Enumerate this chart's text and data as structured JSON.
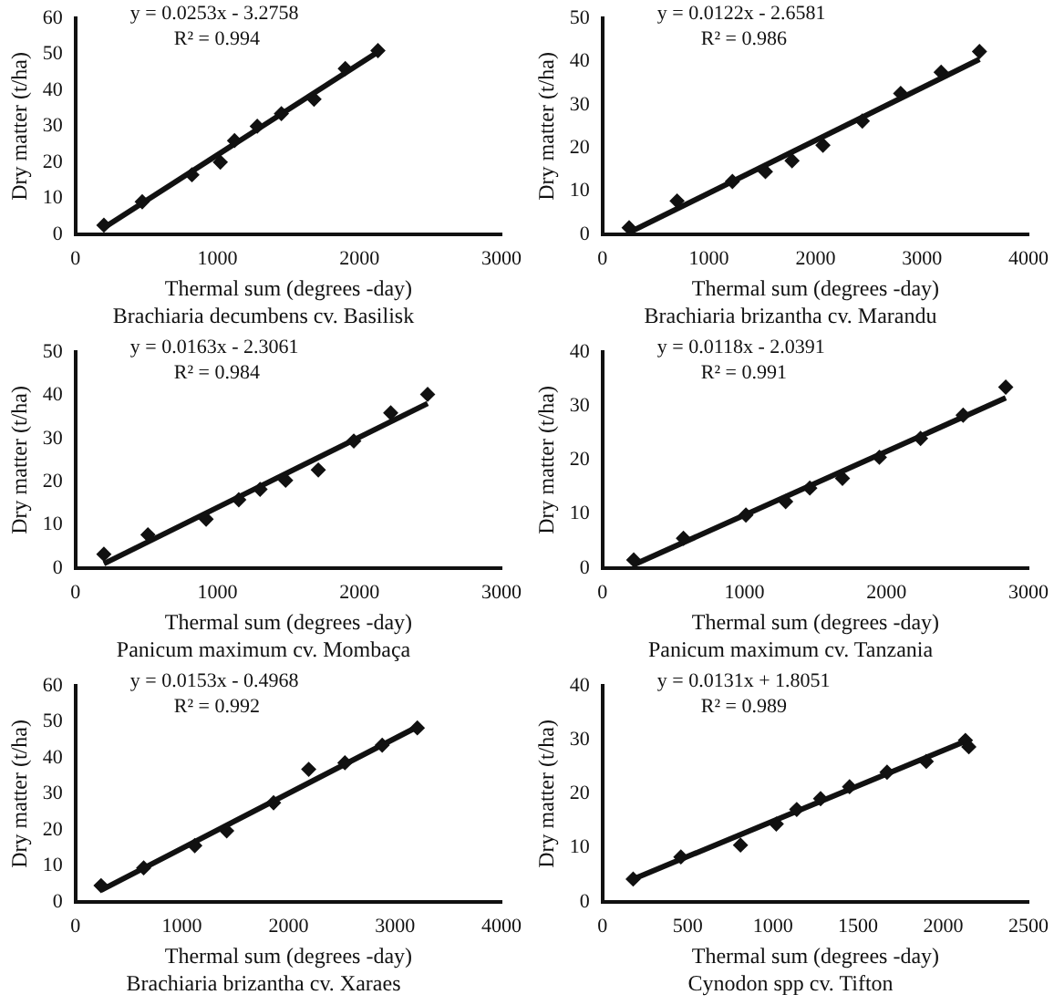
{
  "chart_data": [
    {
      "type": "scatter",
      "title": "Brachiaria decumbens cv. Basilisk",
      "xlabel": "Thermal sum (degrees -day)",
      "ylabel": "Dry matter (t/ha)",
      "xlim": [
        0,
        3000
      ],
      "xticks": [
        0,
        1000,
        2000,
        3000
      ],
      "ylim": [
        0,
        60
      ],
      "yticks": [
        0,
        10,
        20,
        30,
        40,
        50,
        60
      ],
      "annotations": [
        "y = 0.0253x - 3.2758",
        "R² = 0.994"
      ],
      "series": [
        {
          "type": "scatter",
          "marker": "diamond",
          "color": "#111111",
          "x": [
            200,
            470,
            820,
            1020,
            1120,
            1280,
            1450,
            1680,
            1900,
            2130
          ],
          "values": [
            2.5,
            9,
            16.5,
            20,
            26,
            30,
            33.5,
            37.5,
            46,
            51
          ]
        },
        {
          "type": "line",
          "color": "#111111",
          "x": [
            200,
            2130
          ],
          "values": [
            1.8,
            50.6
          ]
        }
      ]
    },
    {
      "type": "scatter",
      "title": "Brachiaria brizantha cv. Marandu",
      "xlabel": "Thermal sum (degrees -day)",
      "ylabel": "Dry matter (t/ha)",
      "xlim": [
        0,
        4000
      ],
      "xticks": [
        0,
        1000,
        2000,
        3000,
        4000
      ],
      "ylim": [
        0,
        50
      ],
      "yticks": [
        0,
        10,
        20,
        30,
        40,
        50
      ],
      "annotations": [
        "y = 0.0122x - 2.6581",
        "R² = 0.986"
      ],
      "series": [
        {
          "type": "scatter",
          "marker": "diamond",
          "color": "#111111",
          "x": [
            250,
            700,
            1220,
            1530,
            1780,
            2070,
            2440,
            2800,
            3180,
            3540
          ],
          "values": [
            1.5,
            7.7,
            12.2,
            14.5,
            17,
            20.6,
            26.2,
            32.6,
            37.5,
            42.3
          ]
        },
        {
          "type": "line",
          "color": "#111111",
          "x": [
            250,
            3540
          ],
          "values": [
            0.4,
            40.5
          ]
        }
      ]
    },
    {
      "type": "scatter",
      "title": "Panicum maximum cv. Mombaça",
      "xlabel": "Thermal sum (degrees -day)",
      "ylabel": "Dry matter (t/ha)",
      "xlim": [
        0,
        3000
      ],
      "xticks": [
        0,
        1000,
        2000,
        3000
      ],
      "ylim": [
        0,
        50
      ],
      "yticks": [
        0,
        10,
        20,
        30,
        40,
        50
      ],
      "annotations": [
        "y = 0.0163x - 2.3061",
        "R² = 0.984"
      ],
      "series": [
        {
          "type": "scatter",
          "marker": "diamond",
          "color": "#111111",
          "x": [
            200,
            510,
            920,
            1150,
            1300,
            1480,
            1710,
            1960,
            2220,
            2480
          ],
          "values": [
            3.2,
            7.7,
            11.3,
            15.8,
            18.2,
            20.3,
            22.7,
            29.4,
            35.9,
            40.2
          ]
        },
        {
          "type": "line",
          "color": "#111111",
          "x": [
            200,
            2480
          ],
          "values": [
            1,
            38.1
          ]
        }
      ]
    },
    {
      "type": "scatter",
      "title": "Panicum maximum cv. Tanzania",
      "xlabel": "Thermal sum (degrees -day)",
      "ylabel": "Dry matter (t/ha)",
      "xlim": [
        0,
        3000
      ],
      "xticks": [
        0,
        1000,
        2000,
        3000
      ],
      "ylim": [
        0,
        40
      ],
      "yticks": [
        0,
        10,
        20,
        30,
        40
      ],
      "annotations": [
        "y = 0.0118x - 2.0391",
        "R² = 0.991"
      ],
      "series": [
        {
          "type": "scatter",
          "marker": "diamond",
          "color": "#111111",
          "x": [
            220,
            570,
            1010,
            1290,
            1460,
            1690,
            1950,
            2240,
            2540,
            2840
          ],
          "values": [
            1.5,
            5.5,
            9.8,
            12.3,
            14.8,
            16.6,
            20.5,
            24,
            28.3,
            33.5
          ]
        },
        {
          "type": "line",
          "color": "#111111",
          "x": [
            220,
            2840
          ],
          "values": [
            0.6,
            31.5
          ]
        }
      ]
    },
    {
      "type": "scatter",
      "title": "Brachiaria brizantha cv. Xaraes",
      "xlabel": "Thermal sum (degrees -day)",
      "ylabel": "Dry matter (t/ha)",
      "xlim": [
        0,
        4000
      ],
      "xticks": [
        0,
        1000,
        2000,
        3000,
        4000
      ],
      "ylim": [
        0,
        60
      ],
      "yticks": [
        0,
        10,
        20,
        30,
        40,
        50,
        60
      ],
      "annotations": [
        "y = 0.0153x - 0.4968",
        "R² = 0.992"
      ],
      "series": [
        {
          "type": "scatter",
          "marker": "diamond",
          "color": "#111111",
          "x": [
            240,
            640,
            1120,
            1420,
            1860,
            2190,
            2530,
            2880,
            3210
          ],
          "values": [
            4.5,
            9.4,
            15.6,
            19.7,
            27.5,
            36.8,
            38.6,
            43.5,
            48.3
          ]
        },
        {
          "type": "line",
          "color": "#111111",
          "x": [
            240,
            3210
          ],
          "values": [
            3.2,
            48.6
          ]
        }
      ]
    },
    {
      "type": "scatter",
      "title": "Cynodon spp cv. Tifton",
      "xlabel": "Thermal sum (degrees -day)",
      "ylabel": "Dry matter (t/ha)",
      "xlim": [
        0,
        2500
      ],
      "xticks": [
        0,
        500,
        1000,
        1500,
        2000,
        2500
      ],
      "ylim": [
        0,
        40
      ],
      "yticks": [
        0,
        10,
        20,
        30,
        40
      ],
      "annotations": [
        "y = 0.0131x + 1.8051",
        "R² = 0.989"
      ],
      "series": [
        {
          "type": "scatter",
          "marker": "diamond",
          "color": "#111111",
          "x": [
            180,
            460,
            810,
            1020,
            1140,
            1280,
            1450,
            1670,
            1900,
            2130,
            2150
          ],
          "values": [
            4.2,
            8.3,
            10.5,
            14.4,
            17.1,
            19.1,
            21.3,
            24,
            26,
            29.9,
            28.7
          ]
        },
        {
          "type": "line",
          "color": "#111111",
          "x": [
            180,
            2150
          ],
          "values": [
            4.2,
            30
          ]
        }
      ]
    }
  ]
}
